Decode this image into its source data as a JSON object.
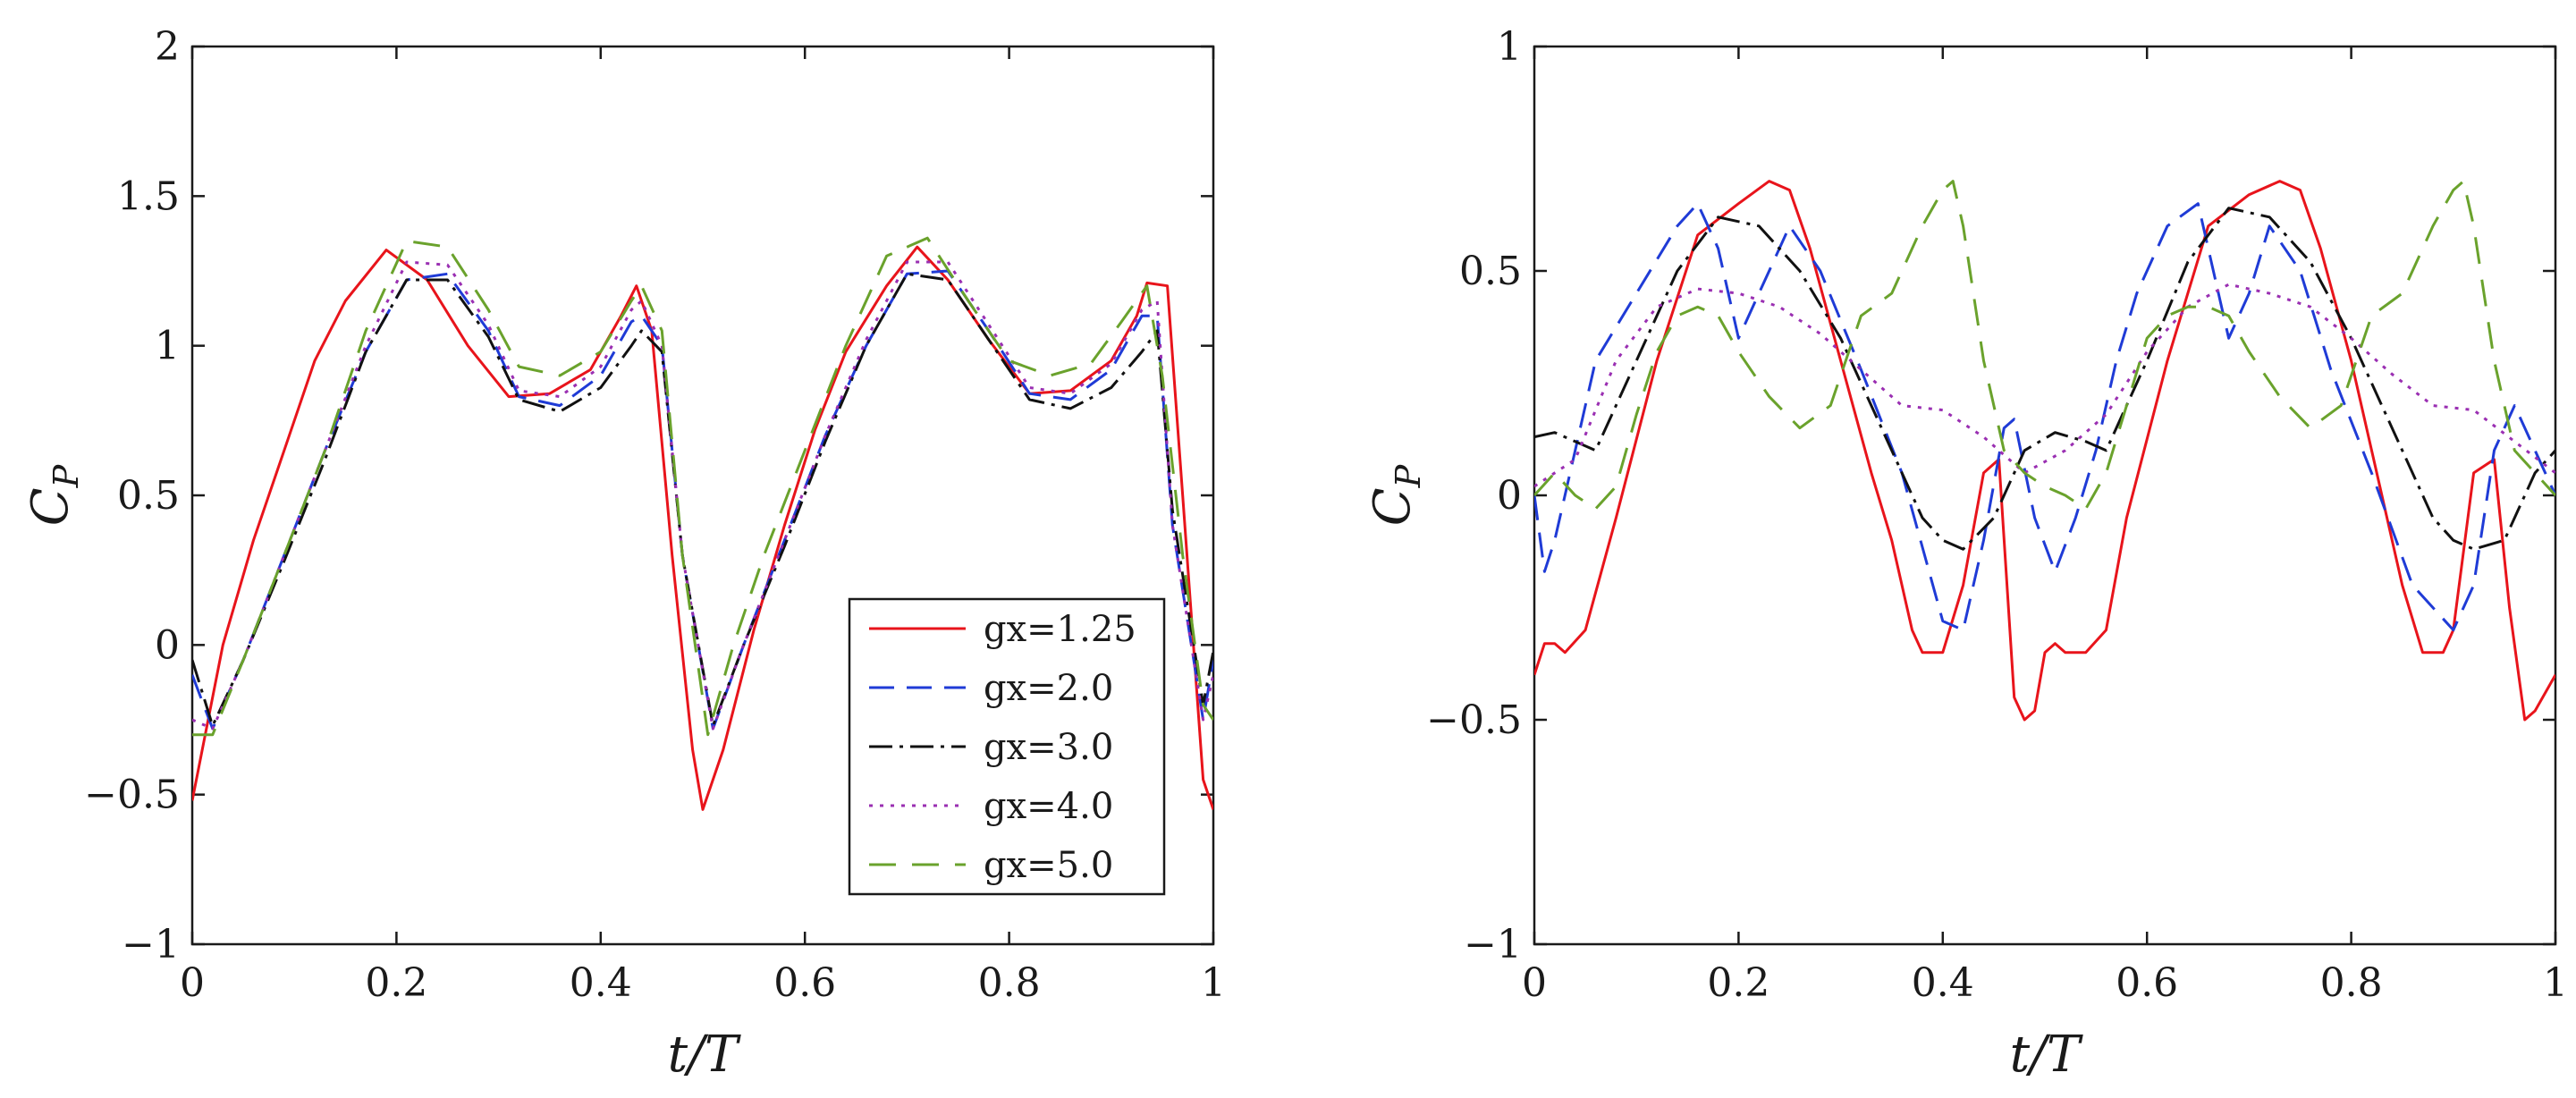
{
  "chart_data": [
    {
      "type": "line",
      "xlabel": "t/T",
      "ylabel_main": "C",
      "ylabel_sub": "P",
      "xlim": [
        0,
        1
      ],
      "ylim": [
        -1,
        2
      ],
      "xticks": [
        0,
        0.2,
        0.4,
        0.6,
        0.8,
        1
      ],
      "yticks": [
        -1,
        -0.5,
        0,
        0.5,
        1,
        1.5,
        2
      ],
      "xtick_labels": [
        "0",
        "0.2",
        "0.4",
        "0.6",
        "0.8",
        "1"
      ],
      "ytick_labels": [
        "−1",
        "−0.5",
        "0",
        "0.5",
        "1",
        "1.5",
        "2"
      ],
      "legend": {
        "position": "lower-right",
        "entries": [
          "gx=1.25",
          "gx=2.0",
          "gx=3.0",
          "gx=4.0",
          "gx=5.0"
        ]
      },
      "series": [
        {
          "name": "gx=1.25",
          "color": "#e8141b",
          "dash": "solid",
          "x": [
            0,
            0.03,
            0.06,
            0.09,
            0.12,
            0.15,
            0.19,
            0.23,
            0.27,
            0.31,
            0.35,
            0.39,
            0.42,
            0.435,
            0.45,
            0.47,
            0.49,
            0.5,
            0.52,
            0.55,
            0.58,
            0.61,
            0.64,
            0.68,
            0.71,
            0.74,
            0.78,
            0.82,
            0.86,
            0.9,
            0.925,
            0.935,
            0.955,
            0.97,
            0.99,
            1.0
          ],
          "y": [
            -0.52,
            0.0,
            0.35,
            0.65,
            0.95,
            1.15,
            1.32,
            1.22,
            1.0,
            0.83,
            0.84,
            0.92,
            1.1,
            1.2,
            1.05,
            0.3,
            -0.35,
            -0.55,
            -0.35,
            0.05,
            0.4,
            0.72,
            0.98,
            1.2,
            1.33,
            1.22,
            1.02,
            0.84,
            0.85,
            0.95,
            1.1,
            1.21,
            1.2,
            0.5,
            -0.45,
            -0.55
          ]
        },
        {
          "name": "gx=2.0",
          "color": "#1f3bd6",
          "dash": "28 14",
          "x": [
            0,
            0.02,
            0.05,
            0.09,
            0.13,
            0.17,
            0.21,
            0.25,
            0.29,
            0.32,
            0.36,
            0.4,
            0.43,
            0.44,
            0.46,
            0.48,
            0.51,
            0.54,
            0.58,
            0.62,
            0.66,
            0.7,
            0.74,
            0.78,
            0.82,
            0.86,
            0.9,
            0.93,
            0.945,
            0.96,
            0.99,
            1.0
          ],
          "y": [
            -0.1,
            -0.28,
            -0.05,
            0.3,
            0.65,
            0.98,
            1.22,
            1.24,
            1.05,
            0.83,
            0.8,
            0.9,
            1.08,
            1.1,
            1.0,
            0.3,
            -0.28,
            0.0,
            0.35,
            0.7,
            1.0,
            1.24,
            1.25,
            1.05,
            0.84,
            0.82,
            0.92,
            1.1,
            1.1,
            0.4,
            -0.25,
            -0.05
          ]
        },
        {
          "name": "gx=3.0",
          "color": "#111111",
          "dash": "26 8 4 8",
          "x": [
            0,
            0.02,
            0.05,
            0.09,
            0.13,
            0.17,
            0.21,
            0.25,
            0.29,
            0.32,
            0.36,
            0.4,
            0.43,
            0.44,
            0.46,
            0.48,
            0.51,
            0.54,
            0.58,
            0.62,
            0.66,
            0.7,
            0.74,
            0.78,
            0.82,
            0.86,
            0.9,
            0.93,
            0.945,
            0.96,
            0.99,
            1.0
          ],
          "y": [
            -0.05,
            -0.27,
            -0.05,
            0.28,
            0.62,
            0.98,
            1.22,
            1.22,
            1.03,
            0.82,
            0.78,
            0.86,
            1.0,
            1.05,
            0.98,
            0.3,
            -0.27,
            0.0,
            0.33,
            0.68,
            1.0,
            1.24,
            1.22,
            1.02,
            0.82,
            0.79,
            0.86,
            0.98,
            1.05,
            0.45,
            -0.2,
            -0.02
          ]
        },
        {
          "name": "gx=4.0",
          "color": "#9a2fb2",
          "dash": "4 8",
          "x": [
            0,
            0.02,
            0.05,
            0.09,
            0.13,
            0.17,
            0.21,
            0.25,
            0.29,
            0.32,
            0.36,
            0.4,
            0.43,
            0.44,
            0.46,
            0.48,
            0.51,
            0.54,
            0.58,
            0.62,
            0.66,
            0.7,
            0.74,
            0.78,
            0.82,
            0.86,
            0.9,
            0.93,
            0.945,
            0.96,
            0.99,
            1.0
          ],
          "y": [
            -0.25,
            -0.28,
            -0.05,
            0.3,
            0.65,
            1.0,
            1.28,
            1.27,
            1.07,
            0.85,
            0.83,
            0.93,
            1.12,
            1.15,
            1.0,
            0.3,
            -0.28,
            0.0,
            0.35,
            0.7,
            1.02,
            1.28,
            1.28,
            1.07,
            0.86,
            0.84,
            0.94,
            1.12,
            1.15,
            0.4,
            -0.25,
            -0.1
          ]
        },
        {
          "name": "gx=5.0",
          "color": "#6aa22c",
          "dash": "30 18",
          "x": [
            0,
            0.02,
            0.05,
            0.09,
            0.13,
            0.17,
            0.21,
            0.25,
            0.29,
            0.32,
            0.36,
            0.4,
            0.43,
            0.44,
            0.46,
            0.48,
            0.505,
            0.53,
            0.56,
            0.6,
            0.64,
            0.68,
            0.72,
            0.76,
            0.8,
            0.84,
            0.88,
            0.91,
            0.935,
            0.95,
            0.97,
            0.99,
            1.0
          ],
          "y": [
            -0.3,
            -0.3,
            -0.05,
            0.3,
            0.65,
            1.05,
            1.35,
            1.33,
            1.12,
            0.93,
            0.9,
            0.98,
            1.15,
            1.2,
            1.05,
            0.3,
            -0.3,
            0.0,
            0.3,
            0.65,
            1.0,
            1.3,
            1.36,
            1.15,
            0.95,
            0.9,
            0.94,
            1.08,
            1.2,
            0.9,
            0.3,
            -0.2,
            -0.25
          ]
        }
      ]
    },
    {
      "type": "line",
      "xlabel": "t/T",
      "ylabel_main": "C",
      "ylabel_sub": "P",
      "xlim": [
        0,
        1
      ],
      "ylim": [
        -1,
        1
      ],
      "xticks": [
        0,
        0.2,
        0.4,
        0.6,
        0.8,
        1
      ],
      "yticks": [
        -1,
        -0.5,
        0,
        0.5,
        1
      ],
      "xtick_labels": [
        "0",
        "0.2",
        "0.4",
        "0.6",
        "0.8",
        "1"
      ],
      "ytick_labels": [
        "−1",
        "−0.5",
        "0",
        "0.5",
        "1"
      ],
      "series": [
        {
          "name": "gx=1.25",
          "color": "#e8141b",
          "dash": "solid",
          "x": [
            0,
            0.01,
            0.02,
            0.03,
            0.05,
            0.08,
            0.12,
            0.16,
            0.2,
            0.23,
            0.25,
            0.27,
            0.3,
            0.33,
            0.35,
            0.37,
            0.38,
            0.4,
            0.42,
            0.44,
            0.455,
            0.47,
            0.48,
            0.49,
            0.5,
            0.51,
            0.52,
            0.54,
            0.56,
            0.58,
            0.62,
            0.66,
            0.7,
            0.73,
            0.75,
            0.77,
            0.8,
            0.83,
            0.85,
            0.87,
            0.89,
            0.9,
            0.92,
            0.94,
            0.955,
            0.97,
            0.98,
            1.0
          ],
          "y": [
            -0.4,
            -0.33,
            -0.33,
            -0.35,
            -0.3,
            -0.05,
            0.3,
            0.58,
            0.65,
            0.7,
            0.68,
            0.55,
            0.3,
            0.05,
            -0.1,
            -0.3,
            -0.35,
            -0.35,
            -0.2,
            0.05,
            0.08,
            -0.45,
            -0.5,
            -0.48,
            -0.35,
            -0.33,
            -0.35,
            -0.35,
            -0.3,
            -0.05,
            0.3,
            0.6,
            0.67,
            0.7,
            0.68,
            0.55,
            0.3,
            0.0,
            -0.2,
            -0.35,
            -0.35,
            -0.3,
            0.05,
            0.08,
            -0.25,
            -0.5,
            -0.48,
            -0.4
          ]
        },
        {
          "name": "gx=2.0",
          "color": "#1f3bd6",
          "dash": "28 14",
          "x": [
            0,
            0.01,
            0.02,
            0.04,
            0.06,
            0.1,
            0.14,
            0.16,
            0.18,
            0.2,
            0.22,
            0.25,
            0.28,
            0.32,
            0.36,
            0.4,
            0.42,
            0.44,
            0.46,
            0.47,
            0.49,
            0.51,
            0.53,
            0.55,
            0.57,
            0.59,
            0.62,
            0.65,
            0.66,
            0.68,
            0.7,
            0.72,
            0.75,
            0.78,
            0.82,
            0.86,
            0.9,
            0.92,
            0.94,
            0.96,
            0.98,
            1.0
          ],
          "y": [
            0.0,
            -0.17,
            -0.1,
            0.1,
            0.3,
            0.45,
            0.6,
            0.65,
            0.55,
            0.35,
            0.45,
            0.6,
            0.5,
            0.28,
            0.05,
            -0.28,
            -0.3,
            -0.1,
            0.15,
            0.17,
            -0.05,
            -0.17,
            -0.05,
            0.1,
            0.3,
            0.45,
            0.6,
            0.65,
            0.55,
            0.35,
            0.45,
            0.6,
            0.5,
            0.28,
            0.05,
            -0.2,
            -0.3,
            -0.2,
            0.1,
            0.2,
            0.1,
            0.0
          ]
        },
        {
          "name": "gx=3.0",
          "color": "#111111",
          "dash": "26 8 4 8",
          "x": [
            0,
            0.02,
            0.04,
            0.06,
            0.1,
            0.14,
            0.18,
            0.22,
            0.26,
            0.3,
            0.34,
            0.38,
            0.4,
            0.42,
            0.45,
            0.48,
            0.51,
            0.54,
            0.56,
            0.6,
            0.64,
            0.68,
            0.72,
            0.76,
            0.8,
            0.84,
            0.88,
            0.9,
            0.92,
            0.95,
            0.98,
            1.0
          ],
          "y": [
            0.13,
            0.14,
            0.12,
            0.1,
            0.3,
            0.5,
            0.62,
            0.6,
            0.5,
            0.35,
            0.15,
            -0.05,
            -0.1,
            -0.12,
            -0.05,
            0.1,
            0.14,
            0.12,
            0.1,
            0.3,
            0.52,
            0.64,
            0.62,
            0.52,
            0.35,
            0.15,
            -0.05,
            -0.1,
            -0.12,
            -0.1,
            0.05,
            0.1
          ]
        },
        {
          "name": "gx=4.0",
          "color": "#9a2fb2",
          "dash": "4 8",
          "x": [
            0,
            0.04,
            0.08,
            0.12,
            0.16,
            0.2,
            0.24,
            0.28,
            0.32,
            0.36,
            0.4,
            0.44,
            0.48,
            0.52,
            0.56,
            0.6,
            0.64,
            0.68,
            0.72,
            0.76,
            0.8,
            0.84,
            0.88,
            0.92,
            0.96,
            1.0
          ],
          "y": [
            0.02,
            0.08,
            0.3,
            0.42,
            0.46,
            0.45,
            0.42,
            0.36,
            0.28,
            0.2,
            0.19,
            0.13,
            0.05,
            0.1,
            0.18,
            0.32,
            0.42,
            0.47,
            0.45,
            0.42,
            0.35,
            0.27,
            0.2,
            0.19,
            0.12,
            0.05
          ]
        },
        {
          "name": "gx=5.0",
          "color": "#6aa22c",
          "dash": "30 18",
          "x": [
            0,
            0.02,
            0.04,
            0.06,
            0.08,
            0.1,
            0.12,
            0.14,
            0.16,
            0.18,
            0.2,
            0.23,
            0.26,
            0.29,
            0.32,
            0.35,
            0.38,
            0.4,
            0.41,
            0.42,
            0.44,
            0.46,
            0.48,
            0.5,
            0.52,
            0.54,
            0.56,
            0.58,
            0.6,
            0.62,
            0.64,
            0.66,
            0.68,
            0.7,
            0.73,
            0.76,
            0.79,
            0.82,
            0.85,
            0.88,
            0.9,
            0.91,
            0.92,
            0.94,
            0.96,
            0.98,
            1.0
          ],
          "y": [
            0.0,
            0.05,
            0.0,
            -0.03,
            0.02,
            0.18,
            0.32,
            0.4,
            0.42,
            0.4,
            0.32,
            0.22,
            0.15,
            0.2,
            0.4,
            0.45,
            0.6,
            0.68,
            0.7,
            0.6,
            0.3,
            0.1,
            0.05,
            0.02,
            0.0,
            -0.03,
            0.05,
            0.2,
            0.35,
            0.4,
            0.42,
            0.42,
            0.4,
            0.32,
            0.22,
            0.15,
            0.2,
            0.4,
            0.45,
            0.6,
            0.68,
            0.7,
            0.6,
            0.3,
            0.1,
            0.05,
            0.0
          ]
        }
      ]
    }
  ]
}
